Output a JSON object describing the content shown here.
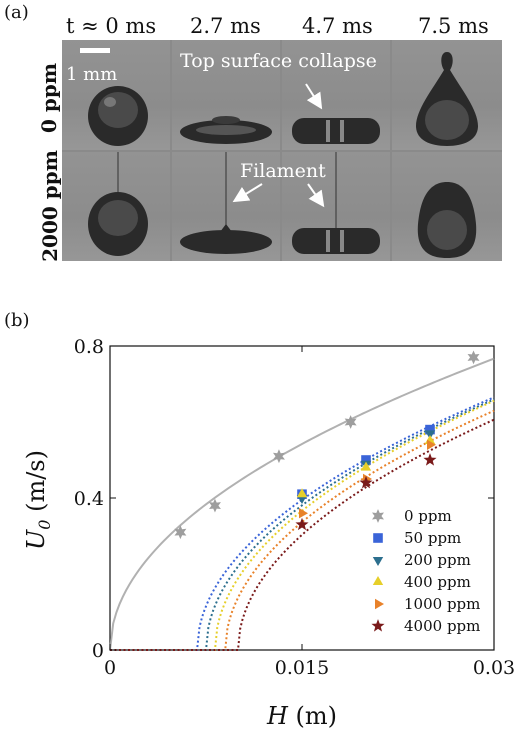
{
  "panel_a": {
    "label": "(a)",
    "times": [
      "t ≈ 0 ms",
      "2.7 ms",
      "4.7 ms",
      "7.5 ms"
    ],
    "rows": [
      "0 ppm",
      "2000 ppm"
    ],
    "scale_bar": "1 mm",
    "annotations": {
      "top_surface": "Top surface collapse",
      "filament": "Filament"
    }
  },
  "panel_b": {
    "label": "(b)"
  },
  "chart_data": {
    "type": "scatter",
    "xlabel_main": "H",
    "xlabel_unit": " (m)",
    "ylabel_main": "U",
    "ylabel_sub": "0",
    "ylabel_unit": " (m/s)",
    "xlim": [
      0,
      0.03
    ],
    "ylim": [
      0,
      0.8
    ],
    "xticks": [
      0,
      0.015,
      0.03
    ],
    "xtick_labels": [
      "0",
      "0.015",
      "0.03"
    ],
    "yticks": [
      0,
      0.4,
      0.8
    ],
    "ytick_labels": [
      "0",
      "0.4",
      "0.8"
    ],
    "legend_position": "lower-right",
    "series": [
      {
        "name": "0 ppm",
        "color": "#9e9e9e",
        "marker": "star6",
        "x": [
          0.0055,
          0.0082,
          0.0132,
          0.0188,
          0.0284
        ],
        "y": [
          0.31,
          0.38,
          0.51,
          0.6,
          0.77
        ],
        "fit_onset": 0
      },
      {
        "name": "50 ppm",
        "color": "#3a64d8",
        "marker": "square",
        "x": [
          0.015,
          0.02,
          0.025
        ],
        "y": [
          0.41,
          0.5,
          0.58
        ],
        "fit_onset": 0.0068
      },
      {
        "name": "200 ppm",
        "color": "#2c6f8e",
        "marker": "tri-down",
        "x": [
          0.015,
          0.02,
          0.025
        ],
        "y": [
          0.4,
          0.49,
          0.57
        ],
        "fit_onset": 0.0075
      },
      {
        "name": "400 ppm",
        "color": "#e6cf2a",
        "marker": "tri-up",
        "x": [
          0.015,
          0.02,
          0.025
        ],
        "y": [
          0.41,
          0.48,
          0.55
        ],
        "fit_onset": 0.0082
      },
      {
        "name": "1000 ppm",
        "color": "#e8822a",
        "marker": "tri-right",
        "x": [
          0.015,
          0.02,
          0.025
        ],
        "y": [
          0.36,
          0.45,
          0.54
        ],
        "fit_onset": 0.009
      },
      {
        "name": "4000 ppm",
        "color": "#7a1a1a",
        "marker": "star5",
        "x": [
          0.015,
          0.02,
          0.025
        ],
        "y": [
          0.33,
          0.44,
          0.5
        ],
        "fit_onset": 0.01
      }
    ]
  }
}
